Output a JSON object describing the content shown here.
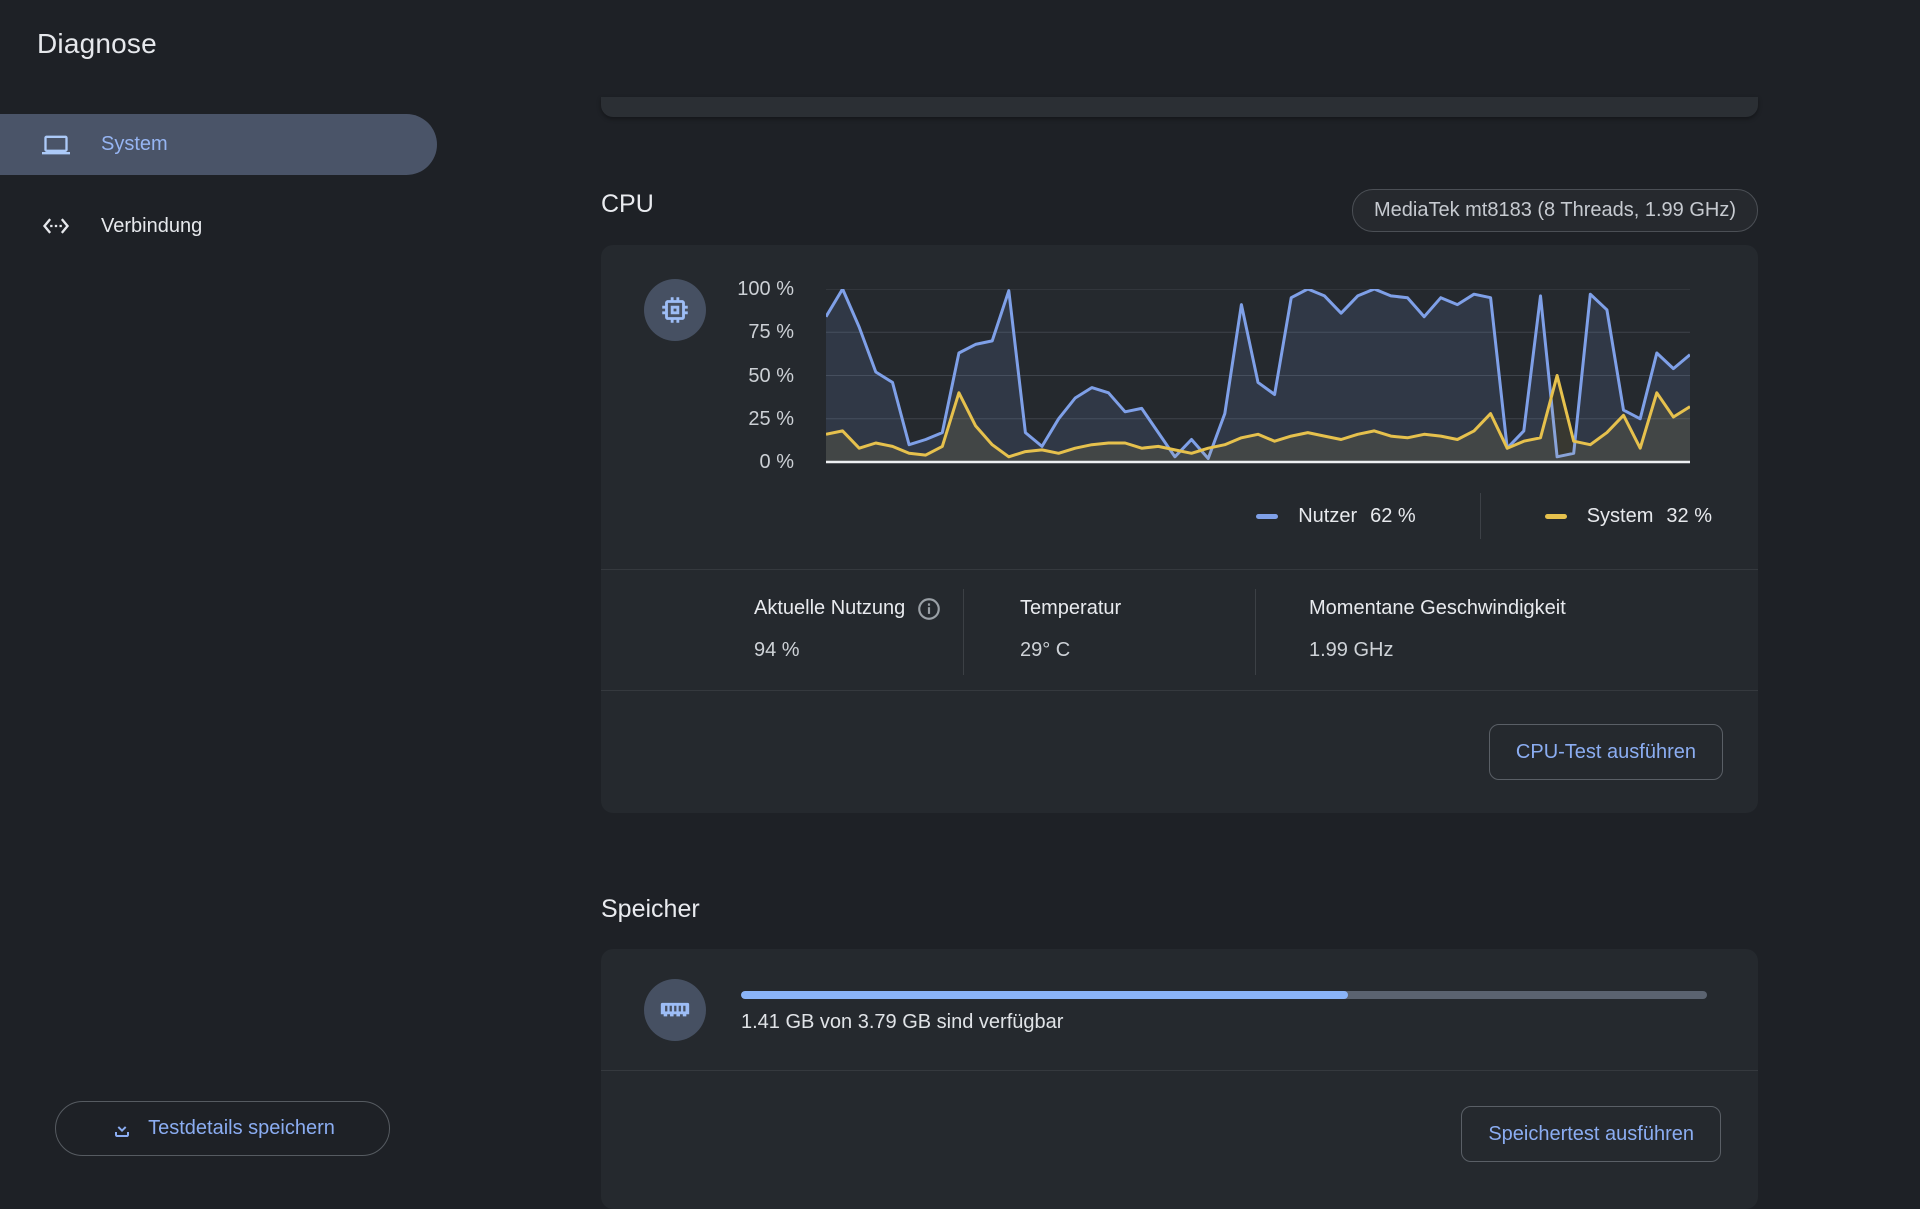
{
  "app": {
    "title": "Diagnose"
  },
  "colors": {
    "accent_blue": "#8badf2",
    "selected_item_bg": "#4a5468",
    "progress_fill": "#8ab4f8",
    "progress_track": "#5b6370"
  },
  "sidebar": {
    "items": [
      {
        "label": "System",
        "icon": "laptop-icon",
        "selected": true
      },
      {
        "label": "Verbindung",
        "icon": "ethernet-icon",
        "selected": false
      }
    ],
    "save_button_label": "Testdetails speichern"
  },
  "cpu": {
    "section_title": "CPU",
    "chip_badge": "MediaTek mt8183 (8 Threads, 1.99 GHz)",
    "stats": [
      {
        "label": "Aktuelle Nutzung",
        "value": "94 %"
      },
      {
        "label": "Temperatur",
        "value": "29° C"
      },
      {
        "label": "Momentane Geschwindigkeit",
        "value": "1.99 GHz"
      }
    ],
    "test_button_label": "CPU-Test ausführen"
  },
  "memory": {
    "section_title": "Speicher",
    "status_text": "1.41 GB von 3.79 GB sind verfügbar",
    "used_percent": 62.8,
    "test_button_label": "Speichertest ausführen"
  },
  "chart_data": {
    "type": "area",
    "title": "",
    "xlabel": "",
    "ylabel": "",
    "ylim": [
      0,
      100
    ],
    "grid": true,
    "legend_position": "bottom-right",
    "y_ticks": [
      {
        "label": "100 %",
        "value": 100
      },
      {
        "label": "75 %",
        "value": 75
      },
      {
        "label": "50 %",
        "value": 50
      },
      {
        "label": "25 %",
        "value": 25
      },
      {
        "label": "0 %",
        "value": 0
      }
    ],
    "series": [
      {
        "name": "Nutzer",
        "current": "62 %",
        "color": "#7fa0e8",
        "fill_opacity": 0.13,
        "values": [
          84,
          100,
          78,
          52,
          46,
          10,
          13,
          17,
          63,
          68,
          70,
          99,
          17,
          9,
          25,
          37,
          43,
          40,
          29,
          31,
          17,
          3,
          13,
          2,
          28,
          91,
          46,
          39,
          95,
          100,
          96,
          86,
          96,
          100,
          96,
          95,
          84,
          95,
          91,
          97,
          95,
          8,
          18,
          96,
          3,
          5,
          97,
          88,
          30,
          25,
          63,
          54,
          62
        ]
      },
      {
        "name": "System",
        "current": "32 %",
        "color": "#e6c14d",
        "fill_opacity": 0.1,
        "values": [
          16,
          18,
          8,
          11,
          9,
          5,
          4,
          9,
          40,
          21,
          10,
          3,
          6,
          7,
          5,
          8,
          10,
          11,
          11,
          8,
          9,
          7,
          5,
          8,
          10,
          14,
          16,
          12,
          15,
          17,
          15,
          13,
          16,
          18,
          15,
          14,
          16,
          15,
          13,
          18,
          28,
          8,
          12,
          14,
          50,
          12,
          10,
          17,
          27,
          8,
          40,
          26,
          32
        ]
      }
    ]
  }
}
